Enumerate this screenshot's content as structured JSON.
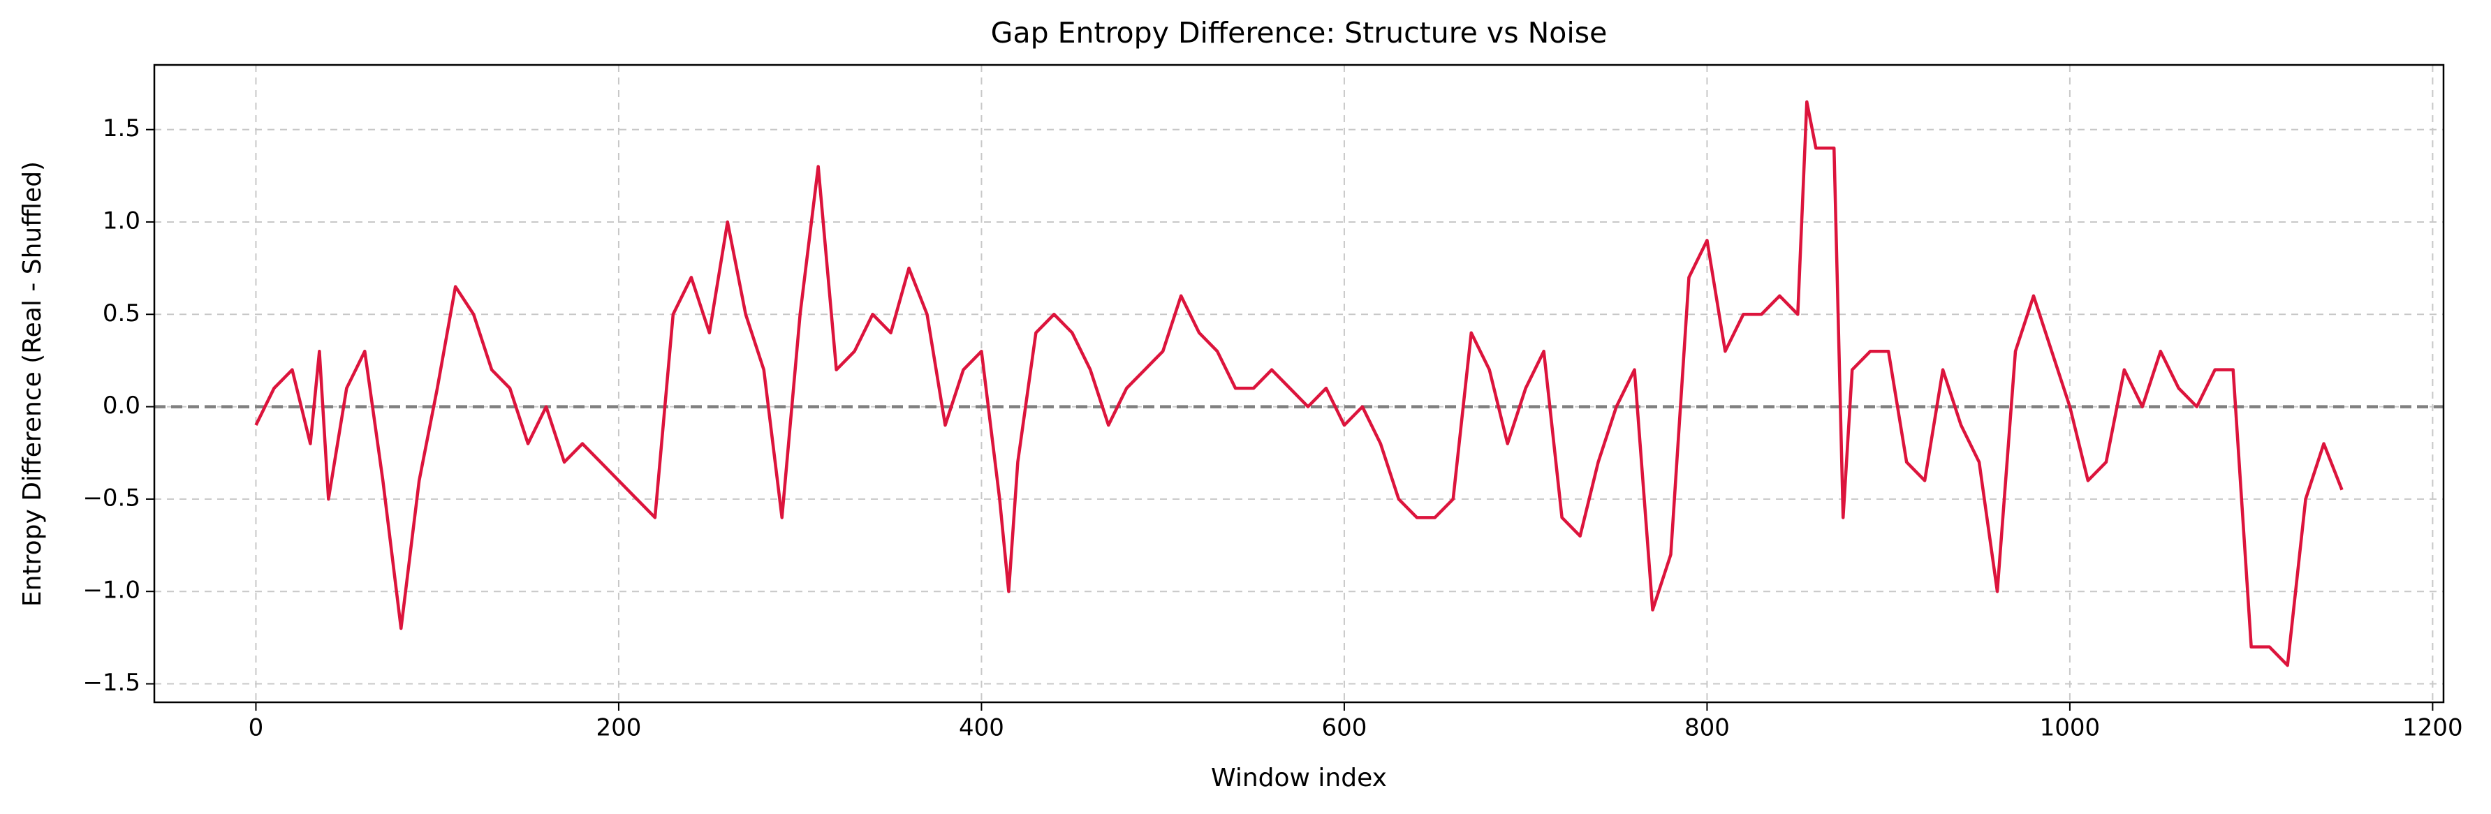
{
  "chart_data": {
    "type": "line",
    "title": "Gap Entropy Difference: Structure vs Noise",
    "x_label": "Window index",
    "y_label": "Entropy Difference (Real - Shuffled)",
    "color": "#dc143c",
    "x": [
      0,
      10,
      20,
      30,
      35,
      40,
      50,
      60,
      70,
      80,
      90,
      100,
      110,
      120,
      130,
      140,
      150,
      160,
      170,
      180,
      190,
      200,
      210,
      220,
      230,
      240,
      250,
      260,
      270,
      280,
      290,
      300,
      310,
      320,
      330,
      340,
      350,
      360,
      370,
      380,
      390,
      400,
      410,
      415,
      420,
      430,
      440,
      450,
      460,
      470,
      480,
      490,
      500,
      510,
      520,
      530,
      540,
      550,
      560,
      570,
      580,
      590,
      600,
      610,
      620,
      630,
      640,
      650,
      660,
      670,
      680,
      690,
      700,
      710,
      720,
      730,
      740,
      750,
      760,
      770,
      780,
      790,
      800,
      810,
      820,
      830,
      840,
      850,
      855,
      860,
      870,
      875,
      880,
      890,
      900,
      910,
      920,
      930,
      940,
      950,
      960,
      970,
      980,
      990,
      1000,
      1010,
      1020,
      1030,
      1040,
      1050,
      1060,
      1070,
      1080,
      1090,
      1100,
      1110,
      1120,
      1130,
      1140,
      1150
    ],
    "values": [
      -0.1,
      0.1,
      0.2,
      -0.2,
      0.3,
      -0.5,
      0.1,
      0.3,
      -0.4,
      -1.2,
      -0.4,
      0.1,
      0.65,
      0.5,
      0.2,
      0.1,
      -0.2,
      0.0,
      -0.3,
      -0.2,
      -0.3,
      -0.4,
      -0.5,
      -0.6,
      0.5,
      0.7,
      0.4,
      1.0,
      0.5,
      0.2,
      -0.6,
      0.5,
      1.3,
      0.2,
      0.3,
      0.5,
      0.4,
      0.75,
      0.5,
      -0.1,
      0.2,
      0.3,
      -0.5,
      -1.0,
      -0.3,
      0.4,
      0.5,
      0.4,
      0.2,
      -0.1,
      0.1,
      0.2,
      0.3,
      0.6,
      0.4,
      0.3,
      0.1,
      0.1,
      0.2,
      0.1,
      0.0,
      0.1,
      -0.1,
      0.0,
      -0.2,
      -0.5,
      -0.6,
      -0.6,
      -0.5,
      0.4,
      0.2,
      -0.2,
      0.1,
      0.3,
      -0.6,
      -0.7,
      -0.3,
      0.0,
      0.2,
      -1.1,
      -0.8,
      0.7,
      0.9,
      0.3,
      0.5,
      0.5,
      0.6,
      0.5,
      1.65,
      1.4,
      1.4,
      -0.6,
      0.2,
      0.3,
      0.3,
      -0.3,
      -0.4,
      0.2,
      -0.1,
      -0.3,
      -1.0,
      0.3,
      0.6,
      0.3,
      0.0,
      -0.4,
      -0.3,
      0.2,
      0.0,
      0.3,
      0.1,
      0.0,
      0.2,
      0.2,
      -1.3,
      -1.3,
      -1.4,
      -0.5,
      -0.2,
      -0.45
    ],
    "reference_line": {
      "y": 0,
      "color": "#808080"
    },
    "xlim": [
      -56,
      1206
    ],
    "ylim": [
      -1.6,
      1.85
    ],
    "xticks": [
      0,
      200,
      400,
      600,
      800,
      1000,
      1200
    ],
    "yticks": [
      {
        "value": -1.5,
        "label": "−1.5"
      },
      {
        "value": -1,
        "label": "−1.0"
      },
      {
        "value": -0.5,
        "label": "−0.5"
      },
      {
        "value": 0,
        "label": "0.0"
      },
      {
        "value": 0.5,
        "label": "0.5"
      },
      {
        "value": 1,
        "label": "1.0"
      },
      {
        "value": 1.5,
        "label": "1.5"
      }
    ],
    "grid": true
  }
}
